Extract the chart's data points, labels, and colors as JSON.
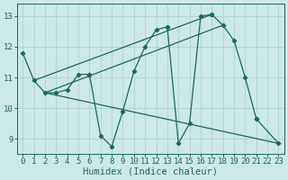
{
  "xlabel": "Humidex (Indice chaleur)",
  "xlim": [
    -0.5,
    23.5
  ],
  "ylim": [
    8.5,
    13.4
  ],
  "yticks": [
    9,
    10,
    11,
    12,
    13
  ],
  "xticks": [
    0,
    1,
    2,
    3,
    4,
    5,
    6,
    7,
    8,
    9,
    10,
    11,
    12,
    13,
    14,
    15,
    16,
    17,
    18,
    19,
    20,
    21,
    22,
    23
  ],
  "bg_color": "#cde8e8",
  "grid_color": "#aacccc",
  "line_color": "#1a6b5a",
  "font_family": "monospace",
  "tick_fontsize": 6.5,
  "label_fontsize": 7.5,
  "series": [
    {
      "segments": [
        {
          "x": [
            0,
            1,
            2,
            3,
            4,
            5,
            6
          ],
          "y": [
            11.8,
            10.9,
            10.5,
            10.5,
            10.6,
            11.1,
            11.1
          ]
        },
        {
          "x": [
            6,
            7,
            8,
            9,
            10,
            11,
            12,
            13
          ],
          "y": [
            11.1,
            9.1,
            8.75,
            9.9,
            11.2,
            12.0,
            12.55,
            12.65
          ]
        },
        {
          "x": [
            13,
            14,
            15,
            16,
            17
          ],
          "y": [
            12.65,
            8.85,
            9.5,
            13.0,
            13.05
          ]
        },
        {
          "x": [
            17,
            18,
            19,
            20,
            21
          ],
          "y": [
            13.05,
            12.7,
            12.2,
            11.0,
            9.65
          ]
        },
        {
          "x": [
            21,
            22,
            23
          ],
          "y": [
            9.65,
            null,
            8.85
          ]
        }
      ],
      "with_markers": true
    },
    {
      "x": [
        1,
        17
      ],
      "y": [
        10.9,
        13.05
      ],
      "with_markers": false
    },
    {
      "x": [
        2,
        18
      ],
      "y": [
        10.5,
        12.7
      ],
      "with_markers": false
    },
    {
      "x": [
        2,
        23
      ],
      "y": [
        10.5,
        8.85
      ],
      "with_markers": false
    }
  ]
}
